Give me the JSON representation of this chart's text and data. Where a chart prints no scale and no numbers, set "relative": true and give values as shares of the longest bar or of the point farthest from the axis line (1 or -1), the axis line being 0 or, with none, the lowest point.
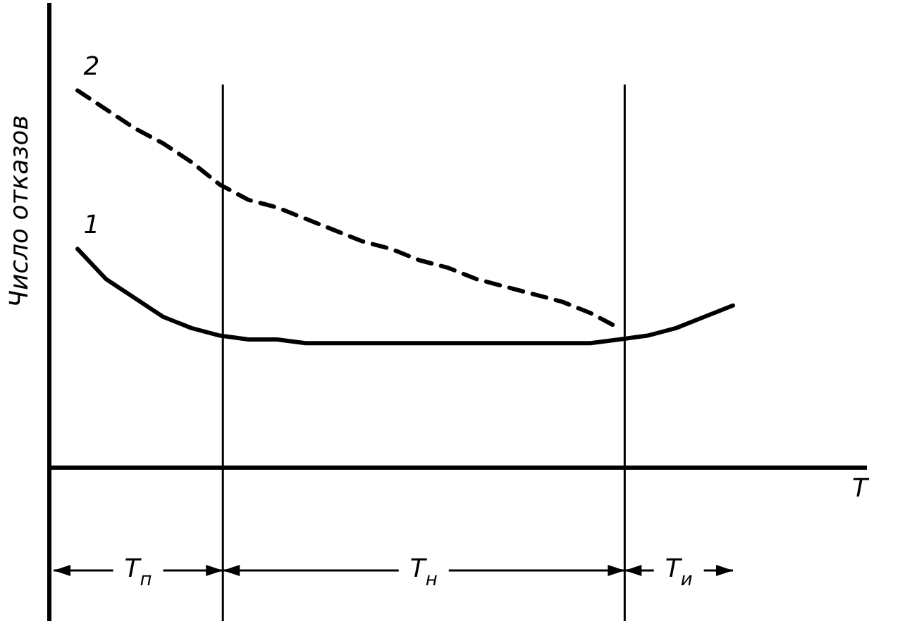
{
  "chart_data": {
    "type": "line",
    "relative": true,
    "ylabel": "Число отказов",
    "xlabel": "T",
    "grid": false,
    "legend": false,
    "marker": "none",
    "categories": [
      null,
      null,
      null,
      null,
      null,
      null,
      null,
      null,
      null,
      null,
      null,
      null,
      null,
      null,
      null,
      null,
      null,
      null,
      null,
      null,
      null,
      null,
      null,
      null
    ],
    "series": [
      {
        "name": "1",
        "color": "#000000",
        "line_style": "solid",
        "values": [
          0.58,
          0.5,
          0.45,
          0.4,
          0.37,
          0.35,
          0.34,
          0.34,
          0.33,
          0.33,
          0.33,
          0.33,
          0.33,
          0.33,
          0.33,
          0.33,
          0.33,
          0.33,
          0.33,
          0.34,
          0.35,
          0.37,
          0.4,
          0.43
        ]
      },
      {
        "name": "2",
        "color": "#000000",
        "line_style": "dashed",
        "values": [
          1.0,
          0.95,
          0.9,
          0.86,
          0.81,
          0.75,
          0.71,
          0.69,
          0.66,
          0.63,
          0.6,
          0.58,
          0.55,
          0.53,
          0.5,
          0.48,
          0.46,
          0.44,
          0.41,
          0.37,
          null,
          null,
          null,
          null
        ]
      }
    ],
    "annotations": [
      "T$_{п}$",
      "T$_{н}$",
      "T$_{и}$"
    ]
  }
}
